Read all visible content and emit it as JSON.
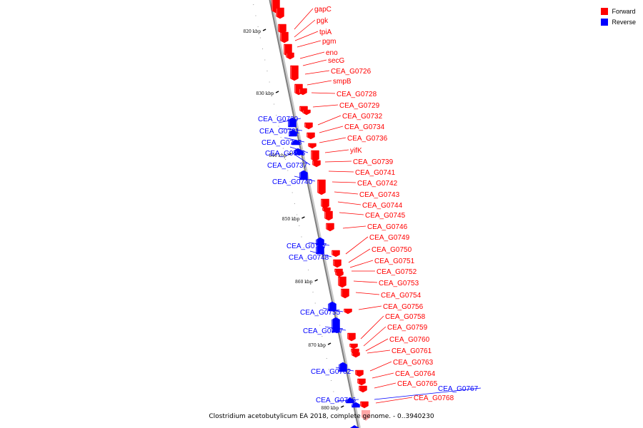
{
  "legend": {
    "items": [
      {
        "label": "Forward",
        "color": "#ff0000"
      },
      {
        "label": "Reverse",
        "color": "#0000ff"
      }
    ]
  },
  "caption": "Clostridium acetobutylicum EA 2018, complete genome. - 0..3940230",
  "colors": {
    "forward": "#ff0000",
    "reverse": "#0000ff",
    "axis": "#808080",
    "tick": "#000000"
  },
  "ticks": [
    "820 kbp",
    "830 kbp",
    "840 kbp",
    "850 kbp",
    "860 kbp",
    "870 kbp",
    "880 kbp"
  ],
  "genes": [
    {
      "name": "gapC",
      "strand": "forward"
    },
    {
      "name": "pgk",
      "strand": "forward"
    },
    {
      "name": "tpiA",
      "strand": "forward"
    },
    {
      "name": "pgm",
      "strand": "forward"
    },
    {
      "name": "eno",
      "strand": "forward"
    },
    {
      "name": "secG",
      "strand": "forward"
    },
    {
      "name": "CEA_G0726",
      "strand": "forward"
    },
    {
      "name": "smpB",
      "strand": "forward"
    },
    {
      "name": "CEA_G0728",
      "strand": "forward"
    },
    {
      "name": "CEA_G0729",
      "strand": "forward"
    },
    {
      "name": "CEA_G0730",
      "strand": "reverse"
    },
    {
      "name": "CEA_G0731",
      "strand": "reverse"
    },
    {
      "name": "CEA_G0732",
      "strand": "forward"
    },
    {
      "name": "CEA_G0733",
      "strand": "reverse"
    },
    {
      "name": "CEA_G0734",
      "strand": "forward"
    },
    {
      "name": "CEA_G0735",
      "strand": "reverse"
    },
    {
      "name": "CEA_G0736",
      "strand": "forward"
    },
    {
      "name": "CEA_G0737",
      "strand": "reverse"
    },
    {
      "name": "yifK",
      "strand": "forward"
    },
    {
      "name": "CEA_G0739",
      "strand": "forward"
    },
    {
      "name": "CEA_G0740",
      "strand": "reverse"
    },
    {
      "name": "CEA_G0741",
      "strand": "forward"
    },
    {
      "name": "CEA_G0742",
      "strand": "forward"
    },
    {
      "name": "CEA_G0743",
      "strand": "forward"
    },
    {
      "name": "CEA_G0744",
      "strand": "forward"
    },
    {
      "name": "CEA_G0745",
      "strand": "forward"
    },
    {
      "name": "CEA_G0746",
      "strand": "forward"
    },
    {
      "name": "CEA_G0747",
      "strand": "reverse"
    },
    {
      "name": "CEA_G0748",
      "strand": "reverse"
    },
    {
      "name": "CEA_G0749",
      "strand": "forward"
    },
    {
      "name": "CEA_G0750",
      "strand": "forward"
    },
    {
      "name": "CEA_G0751",
      "strand": "forward"
    },
    {
      "name": "CEA_G0752",
      "strand": "forward"
    },
    {
      "name": "CEA_G0753",
      "strand": "forward"
    },
    {
      "name": "CEA_G0754",
      "strand": "forward"
    },
    {
      "name": "CEA_G0755",
      "strand": "reverse"
    },
    {
      "name": "CEA_G0756",
      "strand": "forward"
    },
    {
      "name": "CEA_G0757",
      "strand": "reverse"
    },
    {
      "name": "CEA_G0758",
      "strand": "forward"
    },
    {
      "name": "CEA_G0759",
      "strand": "forward"
    },
    {
      "name": "CEA_G0760",
      "strand": "forward"
    },
    {
      "name": "CEA_G0761",
      "strand": "forward"
    },
    {
      "name": "CEA_G0762",
      "strand": "reverse"
    },
    {
      "name": "CEA_G0763",
      "strand": "forward"
    },
    {
      "name": "CEA_G0764",
      "strand": "forward"
    },
    {
      "name": "CEA_G0765",
      "strand": "forward"
    },
    {
      "name": "CEA_G0766",
      "strand": "reverse"
    },
    {
      "name": "CEA_G0767",
      "strand": "reverse"
    },
    {
      "name": "CEA_G0768",
      "strand": "forward"
    }
  ]
}
